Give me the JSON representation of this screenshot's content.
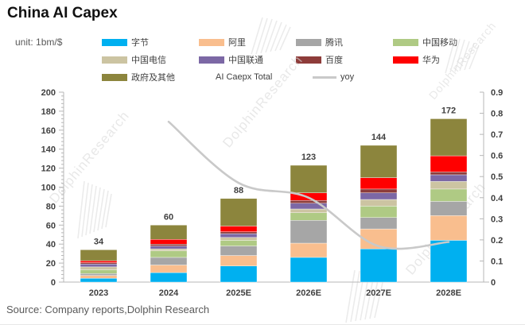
{
  "title": "China AI Capex",
  "unit": "unit: 1bm/$",
  "source": "Source: Company reports,Dolphin Research",
  "watermark": "DolphinResearch",
  "colors": {
    "axis": "#b7b7b7",
    "tick_label": "#3f3f3f",
    "yoy_line": "#c9c9c9",
    "bar_label": "#333333"
  },
  "legend": {
    "items": [
      {
        "label": "字节",
        "color": "#00B0F0",
        "type": "swatch"
      },
      {
        "label": "阿里",
        "color": "#F9BE8E",
        "type": "swatch"
      },
      {
        "label": "腾讯",
        "color": "#A6A6A6",
        "type": "swatch"
      },
      {
        "label": "中国移动",
        "color": "#AFCA84",
        "type": "swatch"
      },
      {
        "label": "中国电信",
        "color": "#CCC4A2",
        "type": "swatch"
      },
      {
        "label": "中国联通",
        "color": "#7C68A5",
        "type": "swatch"
      },
      {
        "label": "百度",
        "color": "#8E3C3A",
        "type": "swatch"
      },
      {
        "label": "华为",
        "color": "#FF0000",
        "type": "swatch"
      },
      {
        "label": "政府及其他",
        "color": "#8C853D",
        "type": "swatch"
      },
      {
        "label": "AI Caepx Total",
        "type": "text"
      },
      {
        "label": "yoy",
        "color": "#C9C9C9",
        "type": "line"
      }
    ]
  },
  "chart_data": {
    "type": "bar",
    "subtype": "stacked-bar-with-line",
    "categories": [
      "2023",
      "2024",
      "2025E",
      "2026E",
      "2027E",
      "2028E"
    ],
    "series": [
      {
        "name": "字节",
        "color": "#00B0F0",
        "values": [
          4,
          10,
          17,
          26,
          35,
          44
        ]
      },
      {
        "name": "阿里",
        "color": "#F9BE8E",
        "values": [
          3,
          8,
          11,
          15,
          21,
          26
        ]
      },
      {
        "name": "腾讯",
        "color": "#A6A6A6",
        "values": [
          2,
          8,
          10,
          24,
          12,
          15
        ]
      },
      {
        "name": "中国移动",
        "color": "#AFCA84",
        "values": [
          4,
          7,
          6,
          8,
          12,
          13
        ]
      },
      {
        "name": "中国电信",
        "color": "#CCC4A2",
        "values": [
          3,
          2,
          3,
          4,
          7,
          8
        ]
      },
      {
        "name": "中国联通",
        "color": "#7C68A5",
        "values": [
          3,
          3,
          4,
          6,
          7,
          7
        ]
      },
      {
        "name": "百度",
        "color": "#8E3C3A",
        "values": [
          1.5,
          2,
          2,
          3,
          4,
          3
        ]
      },
      {
        "name": "华为",
        "color": "#FF0000",
        "values": [
          2,
          5,
          6,
          8,
          12,
          17
        ]
      },
      {
        "name": "政府及其他",
        "color": "#8C853D",
        "values": [
          11.5,
          15,
          29,
          29,
          34,
          39
        ]
      }
    ],
    "totals": [
      34,
      60,
      88,
      123,
      144,
      172
    ],
    "line_series": {
      "name": "yoy",
      "values": [
        null,
        0.76,
        0.47,
        0.4,
        0.17,
        0.19
      ]
    },
    "axes": {
      "left": {
        "min": 0,
        "max": 200,
        "step": 20
      },
      "right": {
        "min": 0,
        "max": 0.9,
        "step": 0.1
      }
    },
    "grid": false,
    "legend_position": "top"
  }
}
